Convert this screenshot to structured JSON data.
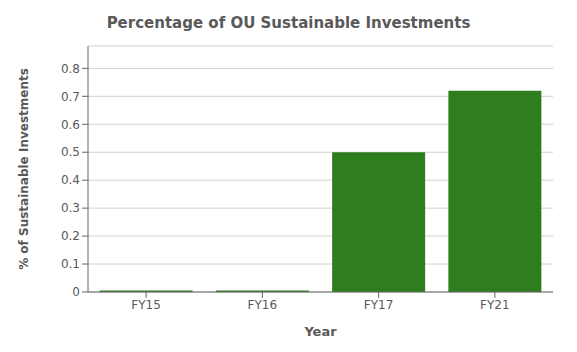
{
  "chart_data": {
    "type": "bar",
    "title": "Percentage of OU Sustainable Investments",
    "categories": [
      "FY15",
      "FY16",
      "FY17",
      "FY21"
    ],
    "values": [
      0.005,
      0.005,
      0.5,
      0.72
    ],
    "color": "#2e7d1e",
    "xlabel": "Year",
    "ylabel": "% of Sustainable Investments",
    "ylim": [
      0,
      0.88
    ],
    "yticks": [
      0,
      0.1,
      0.2,
      0.3,
      0.4,
      0.5,
      0.6,
      0.7,
      0.8
    ],
    "grid": true
  }
}
